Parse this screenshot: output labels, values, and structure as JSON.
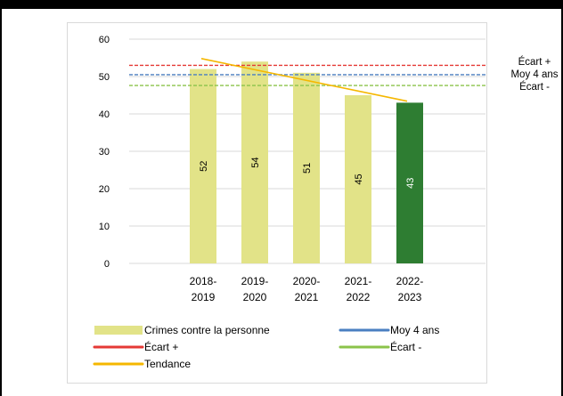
{
  "chart_data": {
    "type": "bar",
    "categories": [
      [
        "2018-",
        "2019"
      ],
      [
        "2019-",
        "2020"
      ],
      [
        "2020-",
        "2021"
      ],
      [
        "2021-",
        "2022"
      ],
      [
        "2022-",
        "2023"
      ]
    ],
    "series": [
      {
        "name": "Crimes contre la personne",
        "values": [
          52,
          54,
          51,
          45,
          43
        ],
        "colors": [
          "#e2e388",
          "#e2e388",
          "#e2e388",
          "#e2e388",
          "#2e7d32"
        ],
        "label_colors": [
          "#000000",
          "#000000",
          "#000000",
          "#000000",
          "#ffffff"
        ]
      }
    ],
    "reference_lines": [
      {
        "name": "Moy 4 ans",
        "value": 50.5,
        "color": "#4a7fc1"
      },
      {
        "name": "Écart +",
        "value": 53,
        "color": "#e53935"
      },
      {
        "name": "Écart -",
        "value": 47.6,
        "color": "#8bc34a"
      }
    ],
    "trend": {
      "name": "Tendance",
      "start": 54.8,
      "end": 43.4,
      "color": "#f5b700"
    },
    "yticks": [
      0,
      10,
      20,
      30,
      40,
      50,
      60
    ],
    "ylim": [
      0,
      60
    ],
    "grid": true,
    "right_labels": [
      "Écart +",
      "Moy 4 ans",
      "Écart -"
    ],
    "legend": {
      "position": "bottom",
      "items": [
        {
          "label": "Crimes contre la personne",
          "kind": "bar",
          "color": "#e2e388"
        },
        {
          "label": "Moy 4 ans",
          "kind": "line",
          "color": "#4a7fc1"
        },
        {
          "label": "Écart +",
          "kind": "line",
          "color": "#e53935"
        },
        {
          "label": "Écart -",
          "kind": "line",
          "color": "#8bc34a"
        },
        {
          "label": "Tendance",
          "kind": "line",
          "color": "#f5b700"
        }
      ]
    }
  }
}
